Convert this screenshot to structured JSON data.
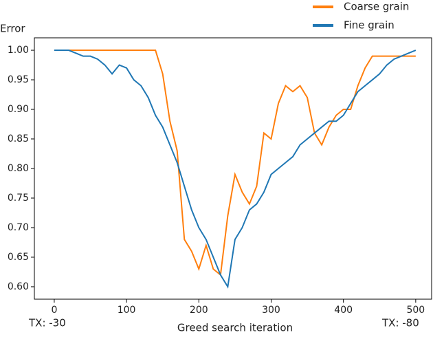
{
  "chart_data": {
    "type": "line",
    "y_label": "Error",
    "x_label": "Greed search iteration",
    "annotations": [
      "TX: -30",
      "TX: -80"
    ],
    "x": [
      0,
      10,
      20,
      30,
      40,
      50,
      60,
      70,
      80,
      90,
      100,
      110,
      120,
      130,
      140,
      150,
      160,
      170,
      180,
      190,
      200,
      210,
      220,
      230,
      240,
      250,
      260,
      270,
      280,
      290,
      300,
      310,
      320,
      330,
      340,
      350,
      360,
      370,
      380,
      390,
      400,
      410,
      420,
      430,
      440,
      450,
      460,
      470,
      480,
      490,
      500
    ],
    "series": [
      {
        "name": "Coarse grain",
        "color": "#ff7f0e",
        "values": [
          1,
          1,
          1,
          1,
          1,
          1,
          1,
          1,
          1,
          1,
          1,
          1,
          1,
          1,
          1,
          0.96,
          0.88,
          0.83,
          0.68,
          0.66,
          0.63,
          0.67,
          0.63,
          0.62,
          0.72,
          0.79,
          0.76,
          0.74,
          0.77,
          0.86,
          0.85,
          0.91,
          0.94,
          0.93,
          0.94,
          0.92,
          0.86,
          0.84,
          0.87,
          0.89,
          0.9,
          0.9,
          0.94,
          0.97,
          0.99,
          0.99,
          0.99,
          0.99,
          0.99,
          0.99,
          0.99
        ]
      },
      {
        "name": "Fine grain",
        "color": "#1f77b4",
        "values": [
          1,
          1,
          1,
          0.995,
          0.99,
          0.99,
          0.985,
          0.975,
          0.96,
          0.975,
          0.97,
          0.95,
          0.94,
          0.92,
          0.89,
          0.87,
          0.84,
          0.81,
          0.77,
          0.73,
          0.7,
          0.68,
          0.65,
          0.62,
          0.6,
          0.68,
          0.7,
          0.73,
          0.74,
          0.76,
          0.79,
          0.8,
          0.81,
          0.82,
          0.84,
          0.85,
          0.86,
          0.87,
          0.88,
          0.88,
          0.89,
          0.91,
          0.93,
          0.94,
          0.95,
          0.96,
          0.975,
          0.985,
          0.99,
          0.995,
          1
        ]
      }
    ],
    "xlim": [
      -27.5,
      522
    ],
    "ylim": [
      0.579,
      1.021
    ],
    "xticks": [
      0,
      100,
      200,
      300,
      400,
      500
    ],
    "yticks": [
      {
        "value": 0.6,
        "label": "0.60"
      },
      {
        "value": 0.65,
        "label": "0.65"
      },
      {
        "value": 0.7,
        "label": "0.70"
      },
      {
        "value": 0.75,
        "label": "0.75"
      },
      {
        "value": 0.8,
        "label": "0.80"
      },
      {
        "value": 0.85,
        "label": "0.85"
      },
      {
        "value": 0.9,
        "label": "0.90"
      },
      {
        "value": 0.95,
        "label": "0.95"
      },
      {
        "value": 1,
        "label": "1.00"
      }
    ],
    "legend": "upper right"
  }
}
